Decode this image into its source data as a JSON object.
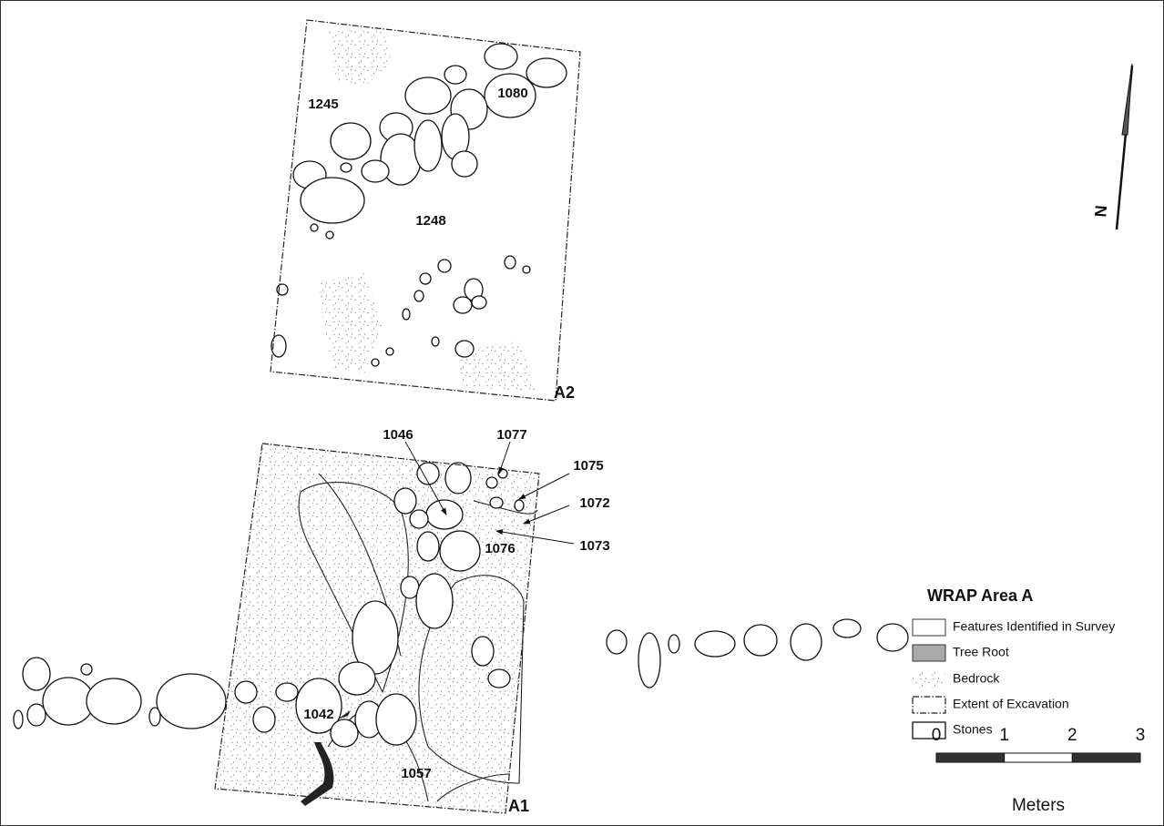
{
  "map": {
    "labels": [
      "1245",
      "1080",
      "1248",
      "A2",
      "1046",
      "1077",
      "1075",
      "1072",
      "1076",
      "1073",
      "1042",
      "1057",
      "A1"
    ],
    "north": "N",
    "legend": {
      "title": "WRAP Area A",
      "items": [
        "Features Identified in Survey",
        "Tree Root",
        "Bedrock",
        "Extent of Excavation",
        "Stones"
      ]
    },
    "scale": {
      "ticks": [
        0,
        1,
        2,
        3
      ],
      "unit": "Meters"
    }
  }
}
